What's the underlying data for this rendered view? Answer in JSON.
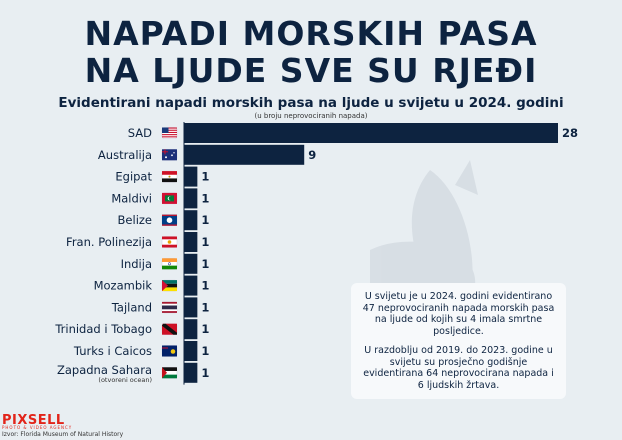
{
  "title_line1": "NAPADI MORSKIH PASA",
  "title_line2": "NA LJUDE SVE SU RJEĐI",
  "subtitle": "Evidentirani napadi morskih pasa na ljude u svijetu u 2024. godini",
  "unit_note": "(u broju neprovociranih napada)",
  "chart_data": {
    "type": "bar",
    "orientation": "horizontal",
    "title": "Evidentirani napadi morskih pasa na ljude u svijetu u 2024. godini",
    "categories": [
      "SAD",
      "Australija",
      "Egipat",
      "Maldivi",
      "Belize",
      "Fran. Polinezija",
      "Indija",
      "Mozambik",
      "Tajland",
      "Trinidad i Tobago",
      "Turks i Caicos",
      "Zapadna Sahara"
    ],
    "category_notes": [
      "",
      "",
      "",
      "",
      "",
      "",
      "",
      "",
      "",
      "",
      "",
      "(otvoreni ocean)"
    ],
    "values": [
      28,
      9,
      1,
      1,
      1,
      1,
      1,
      1,
      1,
      1,
      1,
      1
    ],
    "xlim": [
      0,
      28
    ],
    "bar_color": "#0d2340",
    "flags": [
      "us-flag-icon",
      "australia-flag-icon",
      "egypt-flag-icon",
      "maldives-flag-icon",
      "belize-flag-icon",
      "french-polynesia-flag-icon",
      "india-flag-icon",
      "mozambique-flag-icon",
      "thailand-flag-icon",
      "trinidad-tobago-flag-icon",
      "turks-caicos-flag-icon",
      "western-sahara-flag-icon"
    ],
    "grid": false
  },
  "info": {
    "p1": "U svijetu je u 2024. godini evidentirano 47 neprovociranih napada morskih pasa na ljude od kojih su 4 imala smrtne posljedice.",
    "p2": "U razdoblju od 2019. do 2023. godine u svijetu su prosječno godišnje evidentirana 64 neprovocirana napada i 6 ljudskih žrtava."
  },
  "logo": "PIXSELL",
  "logo_sub": "PHOTO & VIDEO AGENCY",
  "source": "Izvor: Florida Museum of Natural History",
  "colors": {
    "background": "#e8eef2",
    "primary": "#0d2340",
    "logo": "#e2241a"
  }
}
